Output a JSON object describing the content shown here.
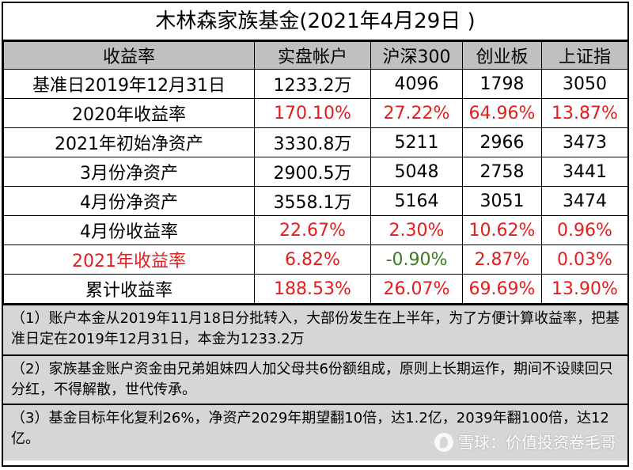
{
  "title": "木林森家族基金(2021年4月29日 )",
  "header": [
    "收益率",
    "实盘帐户",
    "沪深300",
    "创业板",
    "上证指"
  ],
  "rows": [
    {
      "label": "基准日2019年12月31日",
      "cells": [
        "1233.2万",
        "4096",
        "1798",
        "3050"
      ]
    },
    {
      "label": "2020年收益率",
      "cells": [
        "170.10%",
        "27.22%",
        "64.96%",
        "13.87%"
      ]
    },
    {
      "label": "2021年初始净资产",
      "cells": [
        "3330.8万",
        "5211",
        "2966",
        "3473"
      ]
    },
    {
      "label": "3月份净资产",
      "cells": [
        "2900.5万",
        "5048",
        "2758",
        "3441"
      ]
    },
    {
      "label": "4月份净资产",
      "cells": [
        "3558.1万",
        "5164",
        "3051",
        "3474"
      ]
    },
    {
      "label": "4月份收益率",
      "cells": [
        "22.67%",
        "2.30%",
        "10.62%",
        "0.96%"
      ]
    },
    {
      "label": "2021年收益率",
      "cells": [
        "6.82%",
        "-0.90%",
        "2.87%",
        "0.03%"
      ]
    },
    {
      "label": "累计收益率",
      "cells": [
        "188.53%",
        "26.07%",
        "69.69%",
        "13.90%"
      ]
    }
  ],
  "notes": [
    "（1）账户本金从2019年11月18日分批转入，大部份发生在上半年，为了方便计算收益率，把基准日定在2019年12月31日，本金为1233.2万",
    "（2）家族基金账户资金由兄弟姐妹四人加父母共6份额组成，原则上长期运作，期间不设赎回只分红，不得解散，世代传承。",
    "（3）基金目标年化复利26%，净资产2029年期望翻10倍，达1.2亿，2039年翻100倍，达12亿。"
  ],
  "watermark": "雪球：价值投资卷毛哥",
  "colors": {
    "positive": "#e31c1c",
    "negative": "#3e7a1b",
    "header_bg": "#c0c0c0",
    "note_bg": "#d6d6d6"
  }
}
